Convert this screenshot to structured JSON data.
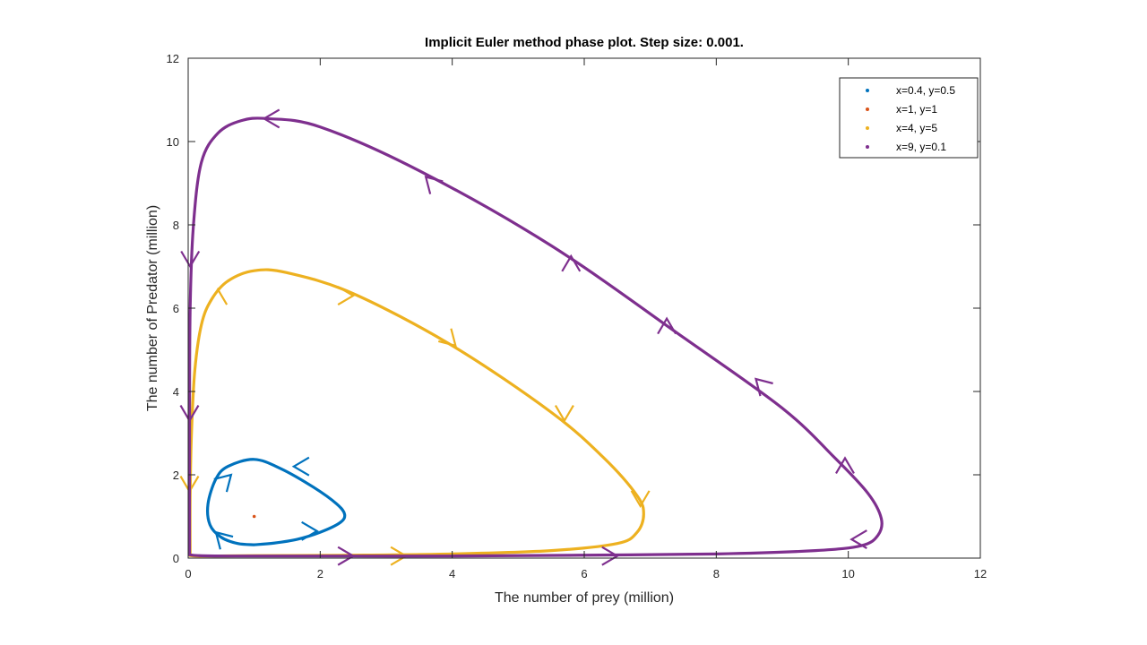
{
  "chart_data": {
    "type": "line",
    "title": "Implicit Euler method phase plot. Step size: 0.001.",
    "xlabel": "The number of prey (million)",
    "ylabel": "The number of Predator (million)",
    "xlim": [
      0,
      12
    ],
    "ylim": [
      0,
      12
    ],
    "xticks": [
      0,
      2,
      4,
      6,
      8,
      10,
      12
    ],
    "yticks": [
      0,
      2,
      4,
      6,
      8,
      10,
      12
    ],
    "grid": false,
    "legend_position": "top-right",
    "series": [
      {
        "name": "x=0.4, y=0.5",
        "color": "#0072BD",
        "x": [
          1.0,
          1.3,
          1.65,
          2.0,
          2.3,
          2.37,
          2.25,
          1.9,
          1.4,
          1.0,
          0.6,
          0.42,
          0.3,
          0.33,
          0.5,
          0.75,
          1.0
        ],
        "y": [
          0.32,
          0.36,
          0.45,
          0.62,
          0.85,
          1.05,
          1.3,
          1.7,
          2.15,
          2.37,
          2.2,
          1.9,
          1.3,
          0.8,
          0.5,
          0.35,
          0.32
        ],
        "arrows": [
          {
            "x": 1.6,
            "y": 2.2,
            "dir": "left"
          },
          {
            "x": 0.65,
            "y": 2.0,
            "dir": "upright"
          },
          {
            "x": 0.42,
            "y": 0.62,
            "dir": "upleft"
          },
          {
            "x": 1.95,
            "y": 0.65,
            "dir": "right"
          }
        ]
      },
      {
        "name": "x=1, y=1",
        "color": "#D95319",
        "x": [
          1.0
        ],
        "y": [
          1.0
        ]
      },
      {
        "name": "x=4, y=5",
        "color": "#EDB120",
        "x": [
          0.03,
          0.03,
          0.05,
          0.1,
          0.2,
          0.35,
          0.6,
          1.0,
          1.5,
          2.5,
          4.0,
          5.5,
          6.3,
          6.8,
          6.9,
          6.8,
          6.5,
          5.5,
          4.0,
          2.5,
          1.0,
          0.3,
          0.1,
          0.03
        ],
        "y": [
          0.06,
          1.5,
          3.0,
          4.5,
          5.6,
          6.2,
          6.65,
          6.9,
          6.85,
          6.35,
          5.1,
          3.5,
          2.4,
          1.5,
          1.05,
          0.62,
          0.35,
          0.18,
          0.1,
          0.07,
          0.06,
          0.05,
          0.05,
          0.06
        ],
        "arrows": [
          {
            "x": 0.02,
            "y": 1.6,
            "dir": "down"
          },
          {
            "x": 0.45,
            "y": 6.45,
            "dir": "up"
          },
          {
            "x": 2.5,
            "y": 6.3,
            "dir": "right"
          },
          {
            "x": 4.05,
            "y": 5.1,
            "dir": "downright"
          },
          {
            "x": 5.7,
            "y": 3.3,
            "dir": "down"
          },
          {
            "x": 6.85,
            "y": 1.25,
            "dir": "down"
          },
          {
            "x": 3.3,
            "y": 0.05,
            "dir": "right"
          }
        ]
      },
      {
        "name": "x=9, y=0.1",
        "color": "#7E2F8E",
        "x": [
          0.02,
          0.02,
          0.03,
          0.08,
          0.2,
          0.45,
          0.8,
          1.2,
          2.0,
          3.5,
          5.5,
          7.5,
          9.0,
          9.8,
          10.3,
          10.5,
          10.45,
          10.2,
          9.5,
          8.0,
          6.0,
          4.0,
          2.0,
          0.6,
          0.15,
          0.02
        ],
        "y": [
          0.08,
          3.0,
          6.0,
          8.0,
          9.5,
          10.2,
          10.5,
          10.55,
          10.35,
          9.3,
          7.5,
          5.3,
          3.6,
          2.4,
          1.55,
          0.95,
          0.55,
          0.3,
          0.18,
          0.1,
          0.07,
          0.05,
          0.05,
          0.05,
          0.06,
          0.08
        ],
        "arrows": [
          {
            "x": 0.03,
            "y": 7.0,
            "dir": "down"
          },
          {
            "x": 0.02,
            "y": 3.3,
            "dir": "down"
          },
          {
            "x": 1.15,
            "y": 10.55,
            "dir": "left"
          },
          {
            "x": 3.6,
            "y": 9.15,
            "dir": "upleft"
          },
          {
            "x": 5.8,
            "y": 7.25,
            "dir": "up"
          },
          {
            "x": 7.25,
            "y": 5.75,
            "dir": "up"
          },
          {
            "x": 8.6,
            "y": 4.3,
            "dir": "upleft"
          },
          {
            "x": 9.95,
            "y": 2.4,
            "dir": "up"
          },
          {
            "x": 10.05,
            "y": 0.45,
            "dir": "left"
          },
          {
            "x": 6.5,
            "y": 0.05,
            "dir": "right"
          },
          {
            "x": 2.5,
            "y": 0.05,
            "dir": "right"
          }
        ]
      }
    ]
  }
}
